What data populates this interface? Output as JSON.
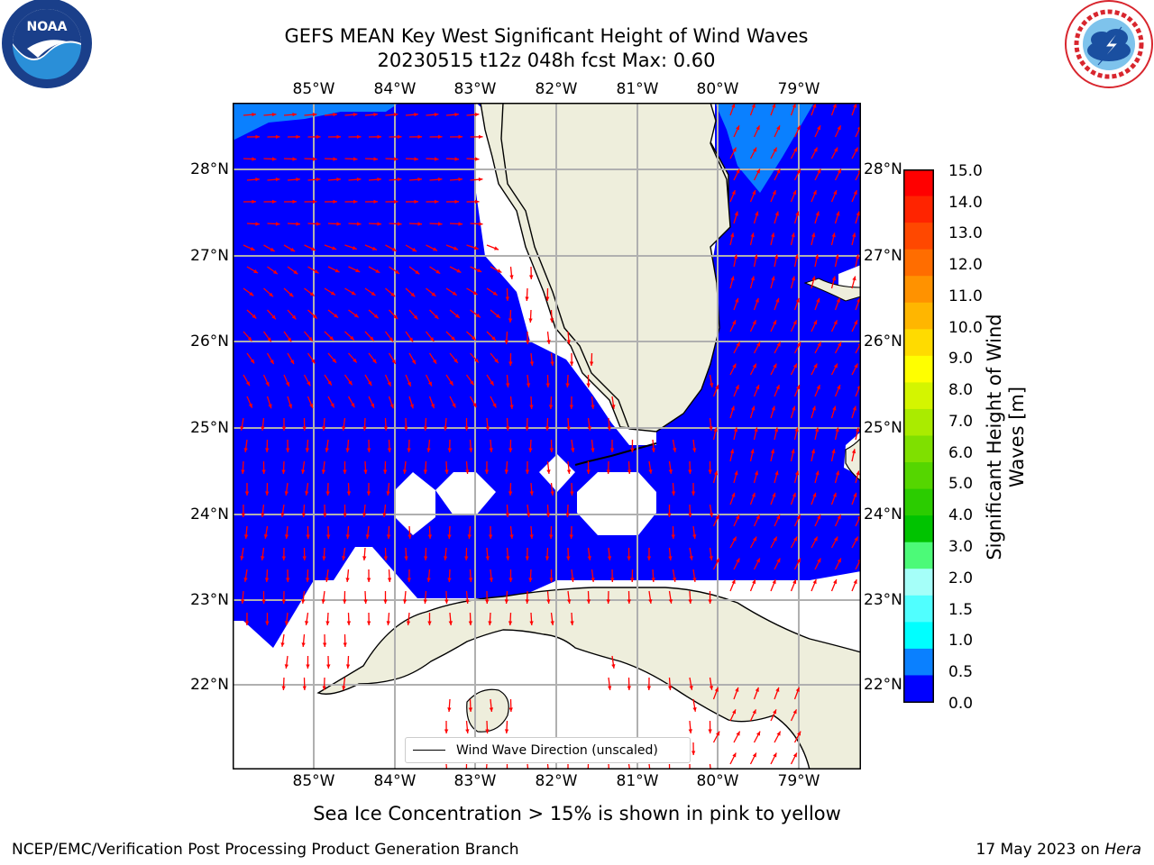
{
  "title": {
    "line1": "GEFS MEAN Key West Significant Height of Wind Waves",
    "line2": "20230515 t12z 048h fcst   Max: 0.60"
  },
  "map": {
    "lon_ticks": [
      "85°W",
      "84°W",
      "83°W",
      "82°W",
      "81°W",
      "80°W",
      "79°W"
    ],
    "lat_ticks": [
      "28°N",
      "27°N",
      "26°N",
      "25°N",
      "24°N",
      "23°N",
      "22°N"
    ],
    "extent": {
      "lon_min": -86.0,
      "lon_max": -78.3,
      "lat_min": 21.0,
      "lat_max": 28.75
    },
    "colors": {
      "wave_0_05": "#0000ff",
      "wave_05_1": "#0a80ff",
      "land": "#eeeedc",
      "arrow": "#ff0000",
      "grid": "#b0b0b0"
    },
    "legend_label": "Wind Wave Direction (unscaled)"
  },
  "colorbar": {
    "label": "Significant Height of Wind Waves [m]",
    "ticks": [
      "15.0",
      "14.0",
      "13.0",
      "12.0",
      "11.0",
      "10.0",
      "9.0",
      "8.0",
      "7.0",
      "6.0",
      "5.0",
      "4.0",
      "3.0",
      "2.0",
      "1.5",
      "1.0",
      "0.5",
      "0.0"
    ],
    "colors": [
      "#ff0000",
      "#ff2400",
      "#ff4800",
      "#ff6d00",
      "#ff9200",
      "#ffb600",
      "#ffdb00",
      "#ffff00",
      "#d4f500",
      "#aaeb00",
      "#7fe000",
      "#55d600",
      "#2bcc00",
      "#00c300",
      "#4cfa78",
      "#a5fff9",
      "#50ffff",
      "#00ffff",
      "#0a80ff",
      "#0000ff"
    ]
  },
  "logos": {
    "left": {
      "name": "noaa-logo",
      "text": "NOAA"
    },
    "right": {
      "name": "nws-logo"
    }
  },
  "sea_ice_note": "Sea Ice Concentration > 15% is shown in pink to yellow",
  "footer": {
    "left": "NCEP/EMC/Verification Post Processing Product Generation Branch",
    "right_prefix": "17 May 2023 on ",
    "right_host": "Hera"
  }
}
